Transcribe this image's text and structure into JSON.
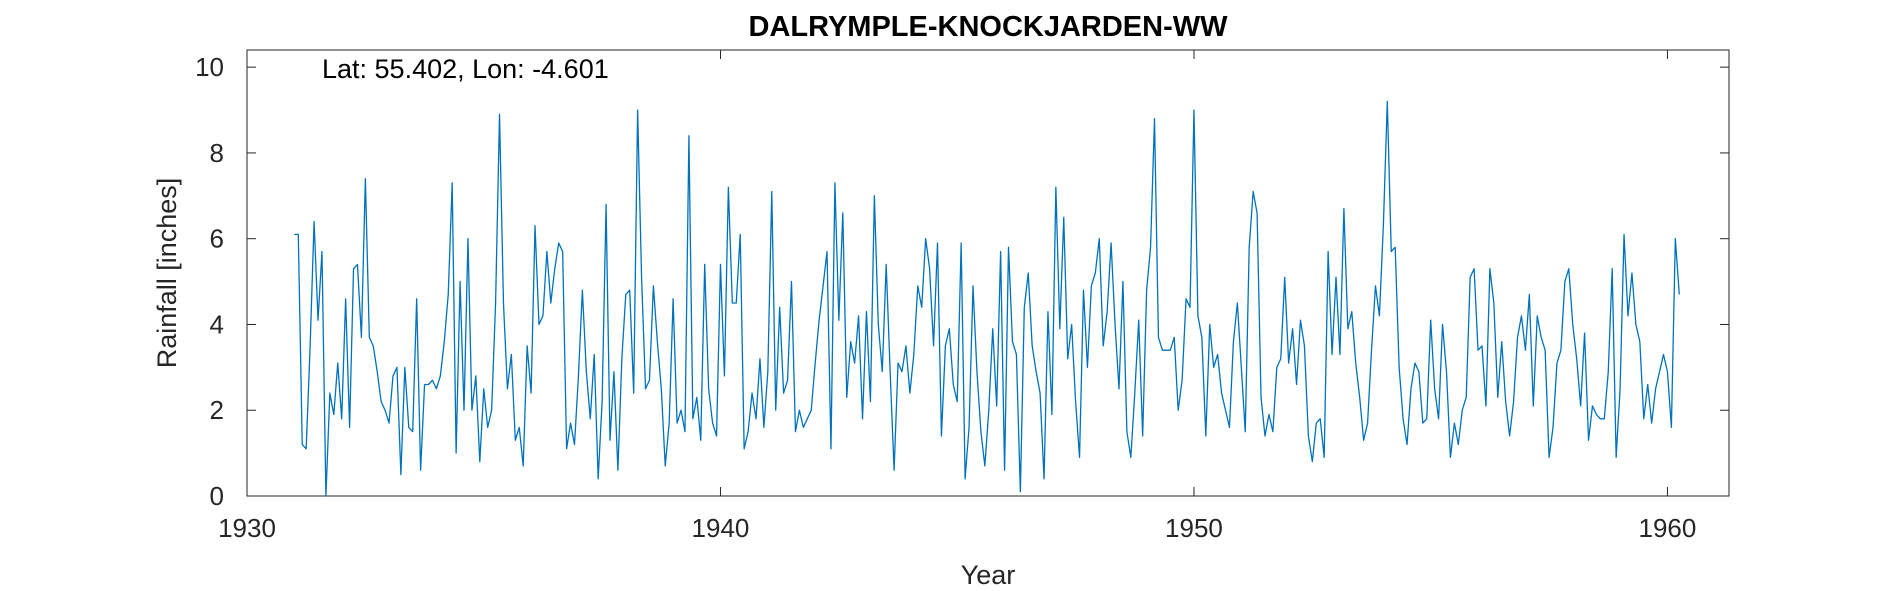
{
  "chart_data": {
    "type": "line",
    "title": "DALRYMPLE-KNOCKJARDEN-WW",
    "annotation": "Lat: 55.402, Lon: -4.601",
    "xlabel": "Year",
    "ylabel": "Rainfall [inches]",
    "xlim": [
      1930,
      1961.3
    ],
    "ylim": [
      0,
      10.4
    ],
    "xticks": [
      1930,
      1940,
      1950,
      1960
    ],
    "yticks": [
      0,
      2,
      4,
      6,
      8,
      10
    ],
    "grid": false,
    "line_color": "#0072BD",
    "series": [
      {
        "x_start": 1931.0,
        "x_step": 0.083333,
        "values": [
          6.1,
          6.1,
          1.2,
          1.1,
          3.5,
          6.4,
          4.1,
          5.7,
          0.0,
          2.4,
          1.9,
          3.1,
          1.8,
          4.6,
          1.6,
          5.3,
          5.4,
          3.7,
          7.4,
          3.7,
          3.5,
          2.9,
          2.2,
          2.0,
          1.7,
          2.8,
          3.0,
          0.5,
          3.0,
          1.6,
          1.5,
          4.6,
          0.6,
          2.6,
          2.6,
          2.7,
          2.5,
          2.8,
          3.6,
          4.7,
          7.3,
          1.0,
          5.0,
          2.0,
          6.0,
          2.0,
          2.8,
          0.8,
          2.5,
          1.6,
          2.0,
          4.5,
          8.9,
          4.5,
          2.5,
          3.3,
          1.3,
          1.6,
          0.7,
          3.5,
          2.4,
          6.3,
          4.0,
          4.2,
          5.7,
          4.5,
          5.3,
          5.9,
          5.7,
          1.1,
          1.7,
          1.2,
          2.8,
          4.8,
          2.9,
          1.8,
          3.3,
          0.4,
          2.2,
          6.8,
          1.3,
          2.9,
          0.6,
          3.2,
          4.7,
          4.8,
          2.4,
          9.0,
          5.1,
          2.5,
          2.7,
          4.9,
          3.6,
          2.5,
          0.7,
          1.7,
          4.6,
          1.7,
          2.0,
          1.5,
          8.4,
          1.8,
          2.3,
          1.3,
          5.4,
          2.5,
          1.7,
          1.4,
          5.4,
          2.8,
          7.2,
          4.5,
          4.5,
          6.1,
          1.1,
          1.5,
          2.4,
          1.8,
          3.2,
          1.6,
          2.9,
          7.1,
          2.0,
          4.4,
          2.4,
          2.7,
          5.0,
          1.5,
          2.0,
          1.6,
          1.8,
          2.0,
          3.1,
          4.1,
          4.9,
          5.7,
          1.1,
          7.3,
          4.1,
          6.6,
          2.3,
          3.6,
          3.1,
          4.2,
          1.8,
          4.3,
          2.2,
          7.0,
          4.0,
          2.9,
          5.4,
          2.9,
          0.6,
          3.1,
          2.9,
          3.5,
          2.4,
          3.3,
          4.9,
          4.4,
          6.0,
          5.3,
          3.5,
          5.9,
          1.4,
          3.5,
          3.9,
          2.6,
          2.2,
          5.9,
          0.4,
          1.6,
          4.9,
          2.9,
          1.5,
          0.7,
          2.0,
          3.9,
          2.1,
          5.7,
          0.6,
          5.8,
          3.6,
          3.3,
          0.1,
          4.4,
          5.2,
          3.5,
          2.9,
          2.4,
          0.4,
          4.3,
          1.9,
          7.2,
          3.9,
          6.5,
          3.2,
          4.0,
          2.2,
          0.9,
          4.8,
          3.0,
          4.9,
          5.2,
          6.0,
          3.5,
          4.3,
          5.9,
          4.0,
          2.5,
          5.0,
          1.5,
          0.9,
          2.4,
          4.1,
          1.4,
          4.8,
          5.8,
          8.8,
          3.7,
          3.4,
          3.4,
          3.4,
          3.7,
          2.0,
          2.7,
          4.6,
          4.4,
          9.0,
          4.2,
          3.7,
          1.4,
          4.0,
          3.0,
          3.3,
          2.4,
          2.0,
          1.6,
          3.6,
          4.5,
          3.0,
          1.5,
          5.8,
          7.1,
          6.6,
          2.3,
          1.4,
          1.9,
          1.5,
          3.0,
          3.2,
          5.1,
          3.1,
          3.9,
          2.6,
          4.1,
          3.5,
          1.4,
          0.8,
          1.7,
          1.8,
          0.9,
          5.7,
          3.3,
          5.1,
          3.3,
          6.7,
          3.9,
          4.3,
          3.1,
          2.3,
          1.3,
          1.7,
          3.4,
          4.9,
          4.2,
          6.3,
          9.2,
          5.7,
          5.8,
          3.0,
          1.8,
          1.2,
          2.5,
          3.1,
          2.9,
          1.7,
          1.8,
          4.1,
          2.5,
          1.8,
          4.0,
          2.9,
          0.9,
          1.7,
          1.2,
          2.0,
          2.3,
          5.1,
          5.3,
          3.4,
          3.5,
          2.1,
          5.3,
          4.5,
          2.3,
          3.6,
          2.2,
          1.4,
          2.2,
          3.7,
          4.2,
          3.4,
          4.7,
          2.1,
          4.2,
          3.7,
          3.4,
          0.9,
          1.6,
          3.1,
          3.4,
          5.0,
          5.3,
          4.0,
          3.2,
          2.1,
          3.8,
          1.3,
          2.1,
          1.9,
          1.8,
          1.8,
          2.9,
          5.3,
          0.9,
          2.5,
          6.1,
          4.2,
          5.2,
          4.0,
          3.6,
          1.8,
          2.6,
          1.7,
          2.5,
          2.9,
          3.3,
          2.9,
          1.6,
          6.0,
          4.7
        ]
      }
    ]
  }
}
